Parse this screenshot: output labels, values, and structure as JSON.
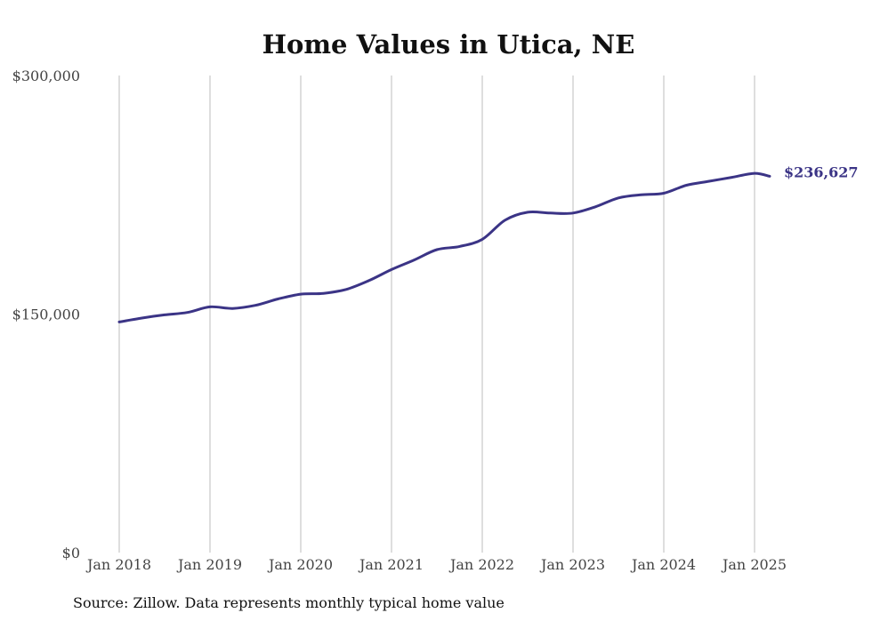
{
  "chart_data": {
    "type": "line",
    "title": "Home Values in Utica, NE",
    "xlabel": "",
    "ylabel": "",
    "ylim": [
      0,
      300000
    ],
    "y_ticks": [
      {
        "value": 0,
        "label": "$0"
      },
      {
        "value": 150000,
        "label": "$150,000"
      },
      {
        "value": 300000,
        "label": "$300,000"
      }
    ],
    "x_ticks": [
      "Jan 2018",
      "Jan 2019",
      "Jan 2020",
      "Jan 2021",
      "Jan 2022",
      "Jan 2023",
      "Jan 2024",
      "Jan 2025"
    ],
    "grid": "vertical",
    "x_start": "2018-01",
    "x_end": "2025-03",
    "series": [
      {
        "color": "#3b3486",
        "dates": [
          "2018-01",
          "2018-04",
          "2018-07",
          "2018-10",
          "2019-01",
          "2019-04",
          "2019-07",
          "2019-10",
          "2020-01",
          "2020-04",
          "2020-07",
          "2020-10",
          "2021-01",
          "2021-04",
          "2021-07",
          "2021-10",
          "2022-01",
          "2022-04",
          "2022-07",
          "2022-10",
          "2023-01",
          "2023-04",
          "2023-07",
          "2023-10",
          "2024-01",
          "2024-04",
          "2024-07",
          "2024-10",
          "2025-01",
          "2025-03"
        ],
        "values": [
          145000,
          147500,
          149500,
          151000,
          154500,
          153500,
          155500,
          159500,
          162500,
          163000,
          165500,
          171000,
          178000,
          184000,
          190500,
          192500,
          197000,
          209000,
          214000,
          213500,
          213500,
          217500,
          223000,
          225000,
          226000,
          231000,
          233500,
          236000,
          238500,
          236627
        ]
      }
    ],
    "end_label": "$236,627",
    "source": "Source: Zillow. Data represents monthly typical home value"
  }
}
